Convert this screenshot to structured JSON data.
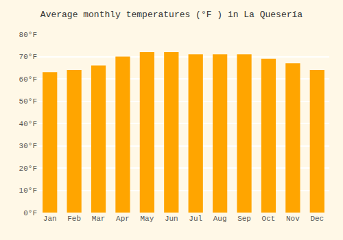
{
  "chart_data": {
    "type": "bar",
    "title": "Average monthly temperatures (°F ) in La Quesería",
    "categories": [
      "Jan",
      "Feb",
      "Mar",
      "Apr",
      "May",
      "Jun",
      "Jul",
      "Aug",
      "Sep",
      "Oct",
      "Nov",
      "Dec"
    ],
    "values": [
      63,
      64,
      66,
      70,
      72,
      72,
      71,
      71,
      71,
      69,
      67,
      64
    ],
    "color": "#FFA500",
    "ylim": [
      0,
      80
    ],
    "yticks": [
      {
        "value": 0,
        "label": "0°F"
      },
      {
        "value": 10,
        "label": "10°F"
      },
      {
        "value": 20,
        "label": "20°F"
      },
      {
        "value": 30,
        "label": "30°F"
      },
      {
        "value": 40,
        "label": "40°F"
      },
      {
        "value": 50,
        "label": "50°F"
      },
      {
        "value": 60,
        "label": "60°F"
      },
      {
        "value": 70,
        "label": "70°F"
      },
      {
        "value": 80,
        "label": "80°F"
      }
    ],
    "grid": true
  }
}
